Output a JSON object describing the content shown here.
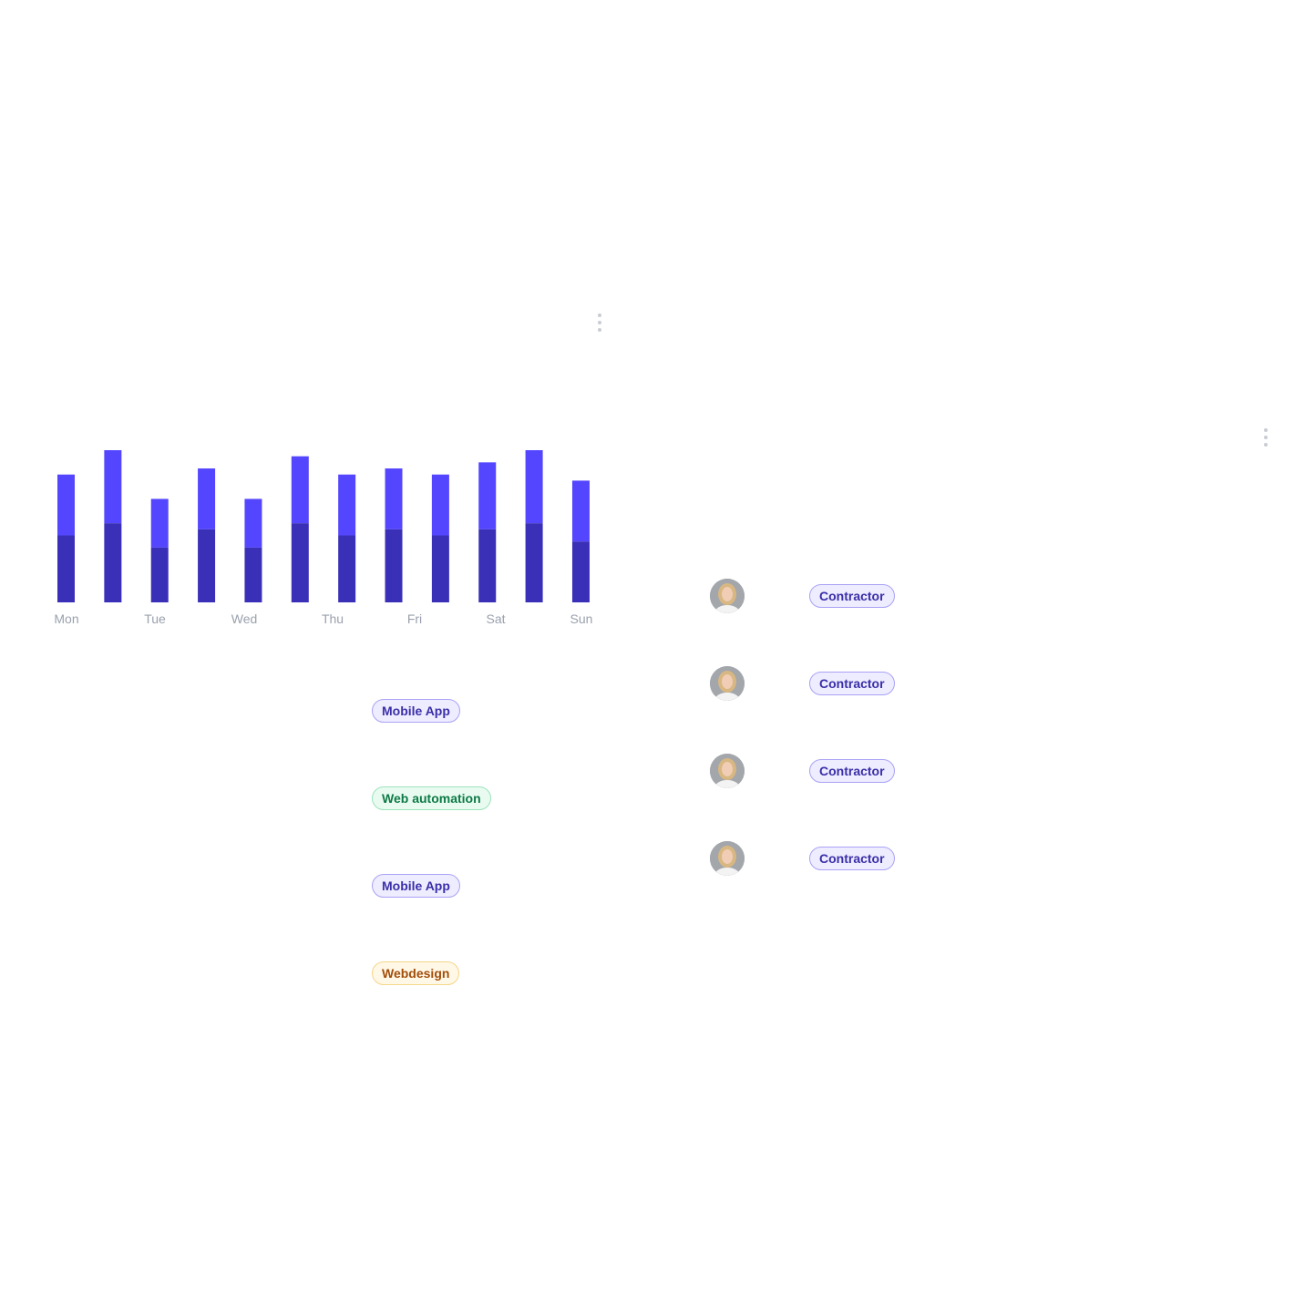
{
  "colors": {
    "bar_top": "#5446ff",
    "bar_bottom": "#3a30b8",
    "axis_label": "#9aa1ad"
  },
  "chart_data": {
    "type": "bar",
    "stacked": true,
    "x_labels": [
      "Mon",
      "Tue",
      "Wed",
      "Thu",
      "Fri",
      "Sat",
      "Sun"
    ],
    "series": [
      {
        "values": [
          11,
          13,
          9,
          12,
          9,
          13,
          11,
          12,
          11,
          12,
          13,
          10
        ]
      },
      {
        "values": [
          10,
          12,
          8,
          10,
          8,
          11,
          10,
          10,
          10,
          11,
          12,
          10
        ]
      }
    ],
    "grid": false,
    "legend": "none"
  },
  "menus": [
    {
      "icon": "more-vertical-icon"
    },
    {
      "icon": "more-vertical-icon"
    }
  ],
  "projects": [
    {
      "tag": "Mobile App",
      "style": "purple"
    },
    {
      "tag": "Web automation",
      "style": "green"
    },
    {
      "tag": "Mobile App",
      "style": "purple"
    },
    {
      "tag": "Webdesign",
      "style": "yellow"
    }
  ],
  "people": [
    {
      "role": "Contractor"
    },
    {
      "role": "Contractor"
    },
    {
      "role": "Contractor"
    },
    {
      "role": "Contractor"
    }
  ]
}
